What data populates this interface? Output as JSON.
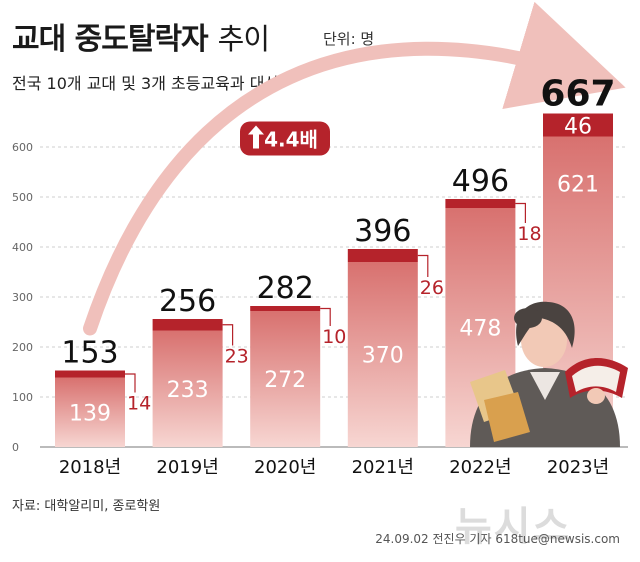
{
  "header": {
    "title": "교대 중도탈락자",
    "title_suffix": "추이",
    "unit": "단위: 명",
    "subtitle": "전국 10개 교대 및 3개 초등교육과 대상"
  },
  "footer": {
    "source": "자료: 대학알리미, 종로학원",
    "credit": "24.09.02 전진우 기자 618tue@newsis.com",
    "watermark": "뉴시스"
  },
  "colors": {
    "top_segment": "#b5232b",
    "bar_gradient_top": "#d8716f",
    "bar_gradient_bottom": "#f7d6d2",
    "arrow": "#f0c0bb",
    "badge": "#b5232b"
  },
  "chart_data": {
    "type": "bar",
    "stacked": true,
    "categories": [
      "2018년",
      "2019년",
      "2020년",
      "2021년",
      "2022년",
      "2023년"
    ],
    "series": [
      {
        "values": [
          139,
          233,
          272,
          370,
          478,
          621
        ]
      },
      {
        "values": [
          14,
          23,
          10,
          26,
          18,
          46
        ]
      }
    ],
    "totals": [
      153,
      256,
      282,
      396,
      496,
      667
    ],
    "yticks": [
      0,
      100,
      200,
      300,
      400,
      500,
      600
    ],
    "ylim": [
      0,
      700
    ],
    "grid": true,
    "annotation": "4.4배",
    "icon": "teacher-holding-books-illustration"
  }
}
